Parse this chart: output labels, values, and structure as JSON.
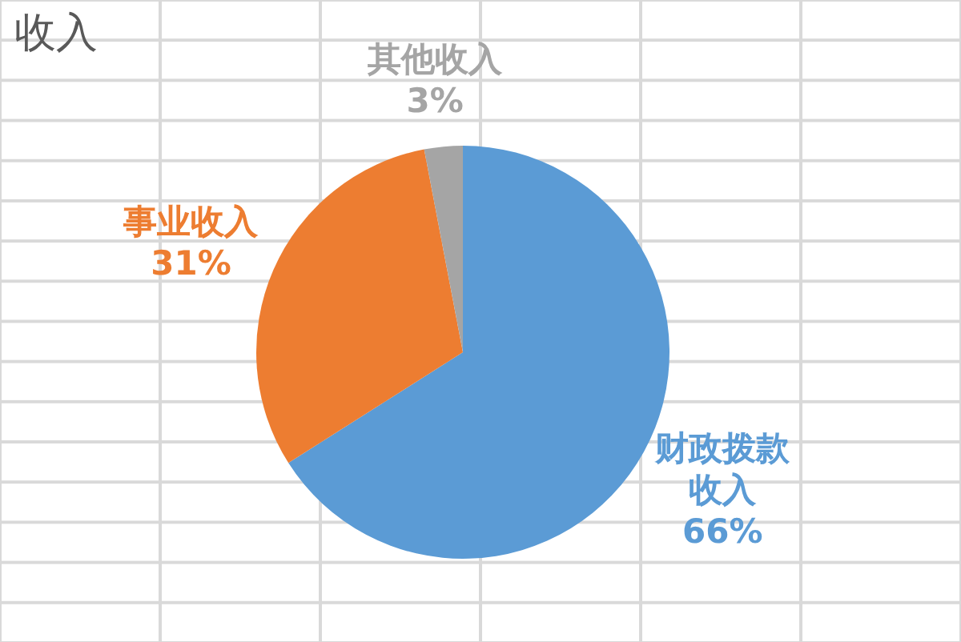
{
  "chart_data": {
    "type": "pie",
    "title": "收入",
    "categories": [
      "财政拨款收入",
      "事业收入",
      "其他收入"
    ],
    "values": [
      66,
      31,
      3
    ],
    "value_labels": [
      "66%",
      "31%",
      "3%"
    ],
    "colors": [
      "#5b9bd5",
      "#ed7d31",
      "#a5a5a5"
    ]
  }
}
